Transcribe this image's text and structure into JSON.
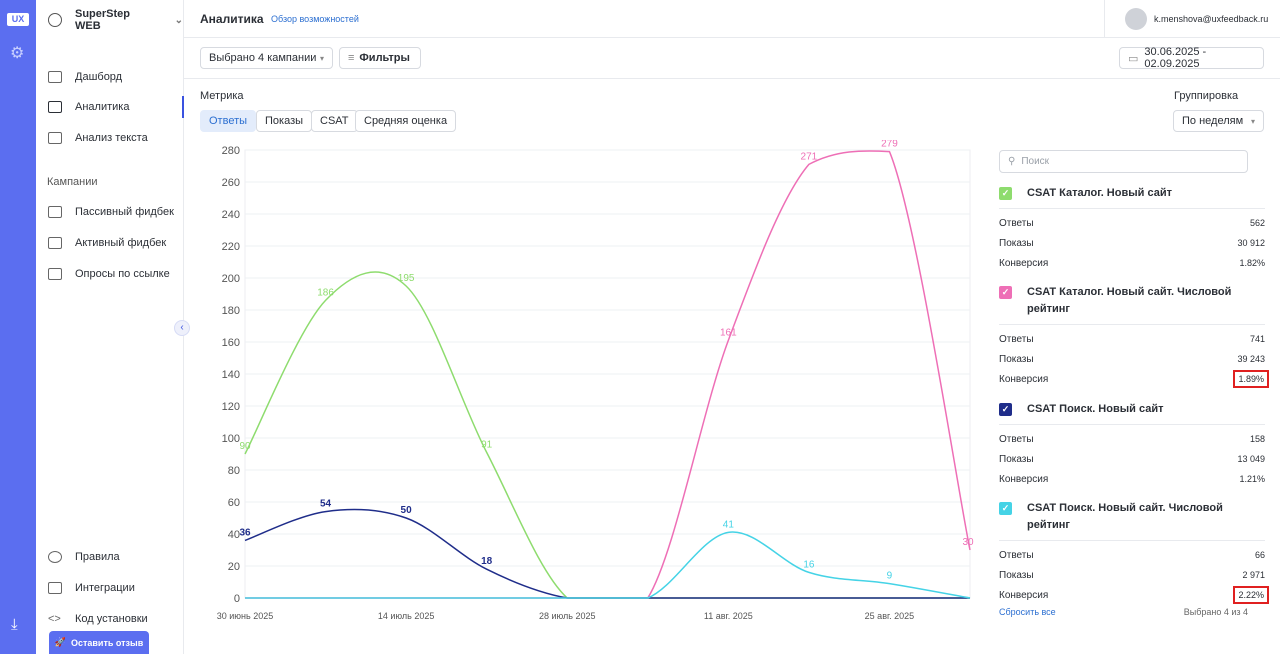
{
  "rail": {
    "logo": "UX"
  },
  "sidebar": {
    "project": "SuperStep WEB",
    "items": [
      {
        "label": "Дашборд"
      },
      {
        "label": "Аналитика"
      },
      {
        "label": "Анализ текста"
      }
    ],
    "section": "Кампании",
    "campaign_items": [
      {
        "label": "Пассивный фидбек"
      },
      {
        "label": "Активный фидбек"
      },
      {
        "label": "Опросы по ссылке"
      }
    ],
    "bottom_items": [
      {
        "label": "Правила"
      },
      {
        "label": "Интеграции"
      },
      {
        "label": "Код установки"
      }
    ],
    "review_button": "Оставить отзыв"
  },
  "header": {
    "title": "Аналитика",
    "link": "Обзор возможностей",
    "user_email": "k.menshova@uxfeedback.ru"
  },
  "toolbar": {
    "campaigns": "Выбрано 4 кампании",
    "filters": "Фильтры",
    "date_range": "30.06.2025 - 02.09.2025"
  },
  "metric": {
    "label": "Метрика",
    "tabs": [
      "Ответы",
      "Показы",
      "CSAT",
      "Средняя оценка"
    ],
    "active_tab": "Ответы"
  },
  "grouping": {
    "label": "Группировка",
    "value": "По неделям"
  },
  "chart_data": {
    "type": "line",
    "x": [
      "2025-06-30",
      "2025-07-07",
      "2025-07-14",
      "2025-07-21",
      "2025-07-28",
      "2025-08-04",
      "2025-08-11",
      "2025-08-18",
      "2025-08-25",
      "2025-09-01"
    ],
    "x_ticks": [
      "30 июнь 2025",
      "14 июль 2025",
      "28 июль 2025",
      "11 авг. 2025",
      "25 авг. 2025"
    ],
    "ylim": [
      0,
      280
    ],
    "yticks": [
      0,
      20,
      40,
      60,
      80,
      100,
      120,
      140,
      160,
      180,
      200,
      220,
      240,
      260,
      280
    ],
    "grid": true,
    "series": [
      {
        "name": "CSAT Каталог. Новый сайт",
        "color": "#8edc6e",
        "values": [
          90,
          186,
          195,
          91,
          0,
          0,
          0,
          0,
          0,
          0
        ],
        "labels": [
          "90",
          "186",
          "195",
          "91",
          "",
          "",
          "",
          "",
          "",
          ""
        ]
      },
      {
        "name": "CSAT Каталог. Новый сайт. Числовой рейтинг",
        "color": "#ee6fb6",
        "values": [
          0,
          0,
          0,
          0,
          0,
          0,
          161,
          271,
          279,
          30
        ],
        "labels": [
          "",
          "",
          "",
          "",
          "",
          "",
          "161",
          "271",
          "279",
          "30"
        ]
      },
      {
        "name": "CSAT Поиск. Новый сайт",
        "color": "#1f2d8a",
        "values": [
          36,
          54,
          50,
          18,
          0,
          0,
          0,
          0,
          0,
          0
        ],
        "labels": [
          "36",
          "54",
          "50",
          "18",
          "",
          "",
          "",
          "",
          "",
          ""
        ]
      },
      {
        "name": "CSAT Поиск. Новый сайт. Числовой рейтинг",
        "color": "#45d3e6",
        "values": [
          0,
          0,
          0,
          0,
          0,
          0,
          41,
          16,
          9,
          0
        ],
        "labels": [
          "",
          "",
          "",
          "",
          "",
          "",
          "41",
          "16",
          "9",
          ""
        ]
      }
    ]
  },
  "panel": {
    "search_placeholder": "Поиск",
    "campaigns": [
      {
        "name": "CSAT Каталог. Новый сайт",
        "color": "#8edc6e",
        "rows": [
          {
            "k": "Ответы",
            "v": "562"
          },
          {
            "k": "Показы",
            "v": "30 912"
          },
          {
            "k": "Конверсия",
            "v": "1.82%"
          }
        ]
      },
      {
        "name": "CSAT Каталог. Новый сайт. Числовой рейтинг",
        "color": "#ee6fb6",
        "rows": [
          {
            "k": "Ответы",
            "v": "741"
          },
          {
            "k": "Показы",
            "v": "39 243"
          },
          {
            "k": "Конверсия",
            "v": "1.89%"
          }
        ]
      },
      {
        "name": "CSAT Поиск. Новый сайт",
        "color": "#1f2d8a",
        "rows": [
          {
            "k": "Ответы",
            "v": "158"
          },
          {
            "k": "Показы",
            "v": "13 049"
          },
          {
            "k": "Конверсия",
            "v": "1.21%"
          }
        ]
      },
      {
        "name": "CSAT Поиск. Новый сайт. Числовой рейтинг",
        "color": "#45d3e6",
        "rows": [
          {
            "k": "Ответы",
            "v": "66"
          },
          {
            "k": "Показы",
            "v": "2 971"
          },
          {
            "k": "Конверсия",
            "v": "2.22%"
          }
        ]
      }
    ],
    "reset": "Сбросить все",
    "selected": "Выбрано 4 из 4"
  }
}
